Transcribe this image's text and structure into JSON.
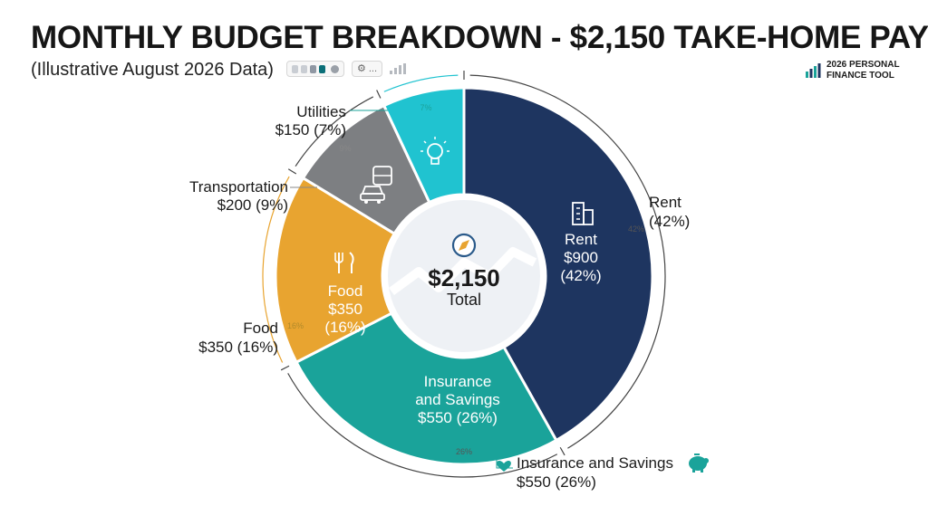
{
  "title": "MONTHLY BUDGET BREAKDOWN - $2,150 TAKE-HOME PAY",
  "subtitle": "(Illustrative August 2026 Data)",
  "brand": {
    "text": "2026 PERSONAL\nFINANCE TOOL",
    "icon": "bar-chart-logo-icon"
  },
  "toolbar": {
    "more_label": "...",
    "icons": [
      "palette-chip-icon",
      "gear-icon",
      "more-icon",
      "bar-chart-icon"
    ]
  },
  "chart_data": {
    "type": "pie",
    "style": "donut",
    "center": {
      "value": "$2,150",
      "label": "Total",
      "icon": "compass-icon"
    },
    "slices": [
      {
        "name": "Rent",
        "value": 900,
        "percent": 42,
        "amount_label": "$900",
        "percent_label": "(42%)",
        "arc_label": "42%",
        "outer_label": "Rent",
        "outer_sub": "(42%)",
        "color": "#1e3560",
        "icon": "building-icon"
      },
      {
        "name": "Insurance and Savings",
        "value": 550,
        "percent": 26,
        "inner_line1": "Insurance",
        "inner_line2": "and Savings",
        "inner_line3": "$550 (26%)",
        "arc_label": "26%",
        "outer_label": "Insurance and Savings",
        "outer_sub": "$550 (26%)",
        "color": "#1aa39a",
        "icon": "piggy-bank-icon",
        "heart_icon": "heart-icon"
      },
      {
        "name": "Food",
        "value": 350,
        "percent": 16,
        "amount_label": "$350",
        "percent_label": "(16%)",
        "arc_label": "16%",
        "outer_label": "Food",
        "outer_sub": "$350 (16%)",
        "color": "#e8a430",
        "icon": "fork-knife-icon"
      },
      {
        "name": "Transportation",
        "value": 200,
        "percent": 9,
        "arc_label": "9%",
        "outer_label": "Transportation",
        "outer_sub": "$200 (9%)",
        "color": "#7d7f82",
        "icon": "car-bus-icon"
      },
      {
        "name": "Utilities",
        "value": 150,
        "percent": 7,
        "arc_label": "7%",
        "outer_label": "Utilities",
        "outer_sub": "$150 (7%)",
        "color": "#20c3d0",
        "icon": "lightbulb-icon"
      }
    ]
  }
}
